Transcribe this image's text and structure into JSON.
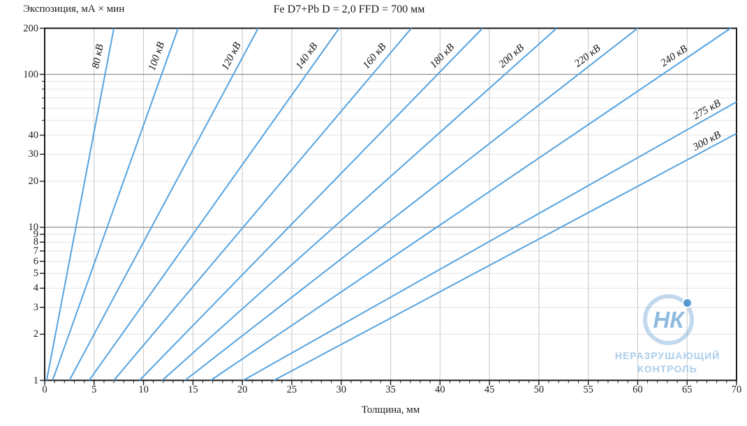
{
  "watermark": {
    "logo_text": "НК",
    "line1": "НЕРАЗРУШАЮЩИЙ",
    "line2": "КОНТРОЛЬ"
  },
  "chart_data": {
    "type": "line",
    "title": "Fe D7+Pb D = 2,0 FFD = 700 мм",
    "xlabel": "Толщина, мм",
    "ylabel": "Экспозиция, мА × мин",
    "x_range": [
      0,
      70
    ],
    "y_range": [
      1,
      200
    ],
    "y_scale": "log",
    "grid": "on",
    "x_ticks_labeled": [
      0,
      5,
      10,
      15,
      20,
      25,
      30,
      35,
      40,
      45,
      50,
      55,
      60,
      65,
      70
    ],
    "x_minor_tick_step": 1,
    "y_ticks_labeled": [
      1,
      2,
      3,
      4,
      5,
      6,
      7,
      8,
      9,
      10,
      20,
      30,
      40,
      100,
      200
    ],
    "y_ticks_minor_unlabeled": [
      50,
      60,
      70,
      80,
      90
    ],
    "y_grid_minor": [
      2,
      3,
      4,
      5,
      6,
      7,
      8,
      9,
      20,
      30,
      40,
      50,
      60,
      70,
      80,
      90
    ],
    "y_grid_emphasized": [
      10,
      100
    ],
    "series_note": "each series is a straight line in semilog space; points are [thickness_mm, exposure_mA_min]",
    "series": [
      {
        "name": "80 кВ",
        "kv": 80,
        "points": [
          [
            0.2,
            1
          ],
          [
            7.0,
            200
          ]
        ],
        "label_E": 125
      },
      {
        "name": "100 кВ",
        "kv": 100,
        "points": [
          [
            0.8,
            1
          ],
          [
            13.5,
            200
          ]
        ],
        "label_E": 125
      },
      {
        "name": "120 кВ",
        "kv": 120,
        "points": [
          [
            2.5,
            1
          ],
          [
            21.6,
            200
          ]
        ],
        "label_E": 125
      },
      {
        "name": "140 кВ",
        "kv": 140,
        "points": [
          [
            4.5,
            1
          ],
          [
            29.8,
            200
          ]
        ],
        "label_E": 125
      },
      {
        "name": "160 кВ",
        "kv": 160,
        "points": [
          [
            7.0,
            1
          ],
          [
            37.1,
            200
          ]
        ],
        "label_E": 125
      },
      {
        "name": "180 кВ",
        "kv": 180,
        "points": [
          [
            9.6,
            1
          ],
          [
            44.3,
            200
          ]
        ],
        "label_E": 125
      },
      {
        "name": "200 кВ",
        "kv": 200,
        "points": [
          [
            11.9,
            1
          ],
          [
            51.8,
            200
          ]
        ],
        "label_E": 125
      },
      {
        "name": "220 кВ",
        "kv": 220,
        "points": [
          [
            14.2,
            1
          ],
          [
            60.0,
            200
          ]
        ],
        "label_E": 125
      },
      {
        "name": "240 кВ",
        "kv": 240,
        "points": [
          [
            16.8,
            1
          ],
          [
            69.4,
            200
          ]
        ],
        "label_E": 125
      },
      {
        "name": "275 кВ",
        "kv": 275,
        "points": [
          [
            20.1,
            1
          ],
          [
            70.0,
            66
          ]
        ],
        "label_E": 56
      },
      {
        "name": "300 кВ",
        "kv": 300,
        "points": [
          [
            23.2,
            1
          ],
          [
            70.0,
            41
          ]
        ],
        "label_E": 35
      }
    ],
    "colors": {
      "line": "#55a3e0",
      "grid_minor": "#e2e2e2",
      "grid_vertical": "#c6c6c6",
      "grid_emphasized": "#8c8c8c",
      "axis": "#1a1a1a"
    },
    "legend_position": "labels-along-lines"
  }
}
